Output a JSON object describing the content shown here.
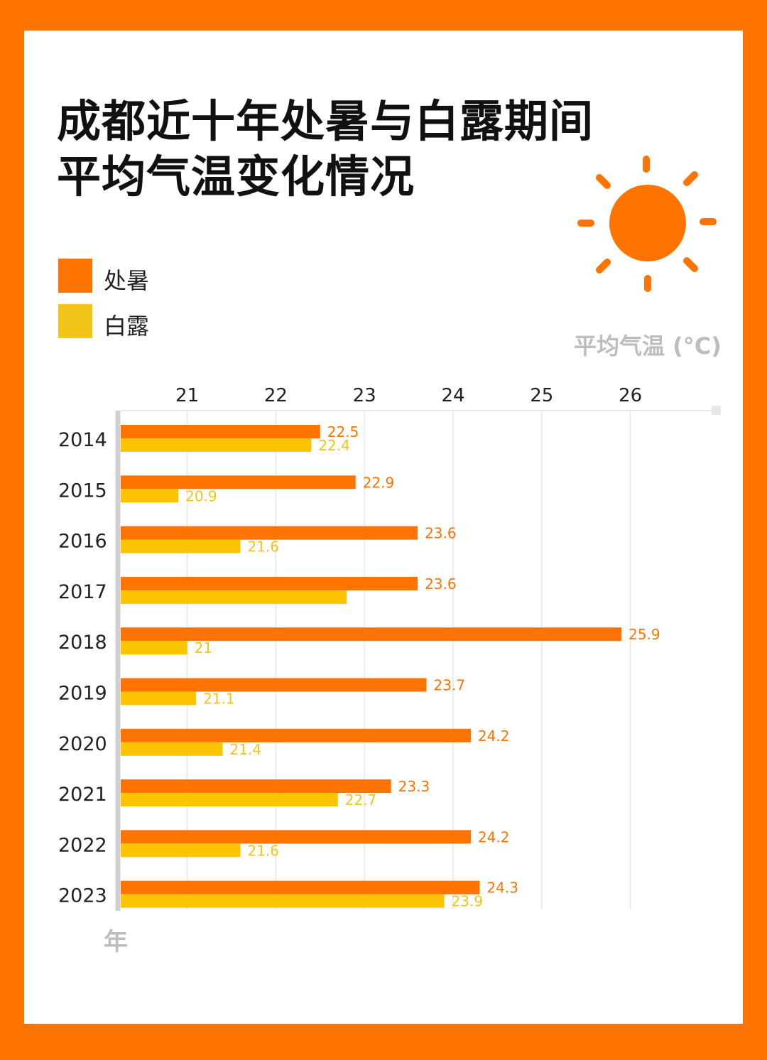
{
  "title_lines": [
    "成都近十年处暑与白露期间",
    "平均气温变化情况"
  ],
  "legend": [
    {
      "label": "处暑",
      "color": "#ff7300"
    },
    {
      "label": "白露",
      "color": "#f2c418"
    }
  ],
  "unit_label": "平均气温 (°C)",
  "y_axis_label": "年",
  "sun_icon": "sun-icon",
  "chart_data": {
    "type": "bar",
    "orientation": "horizontal",
    "title": "成都近十年处暑与白露期间平均气温变化情况",
    "xlabel": "平均气温 (°C)",
    "ylabel": "年",
    "xlim": [
      20.25,
      26.9
    ],
    "x_ticks": [
      21,
      22,
      23,
      24,
      25,
      26
    ],
    "grid": true,
    "categories": [
      "2014",
      "2015",
      "2016",
      "2017",
      "2018",
      "2019",
      "2020",
      "2021",
      "2022",
      "2023"
    ],
    "series": [
      {
        "name": "处暑",
        "color": "#ff7300",
        "label_color": "#ff7300",
        "values": [
          22.5,
          22.9,
          23.6,
          23.6,
          25.9,
          23.7,
          24.2,
          23.3,
          24.2,
          24.3
        ],
        "labels": [
          "22.5",
          "22.9",
          "23.6",
          "23.6",
          "25.9",
          "23.7",
          "24.2",
          "23.3",
          "24.2",
          "24.3"
        ]
      },
      {
        "name": "白露",
        "color": "#fcc400",
        "label_color": "#f2c418",
        "values": [
          22.4,
          20.9,
          21.6,
          22.8,
          21,
          21.1,
          21.4,
          22.7,
          21.6,
          23.9
        ],
        "labels": [
          "22.4",
          "20.9",
          "21.6",
          "",
          "21",
          "21.1",
          "21.4",
          "22.7",
          "21.6",
          "23.9"
        ]
      }
    ]
  }
}
